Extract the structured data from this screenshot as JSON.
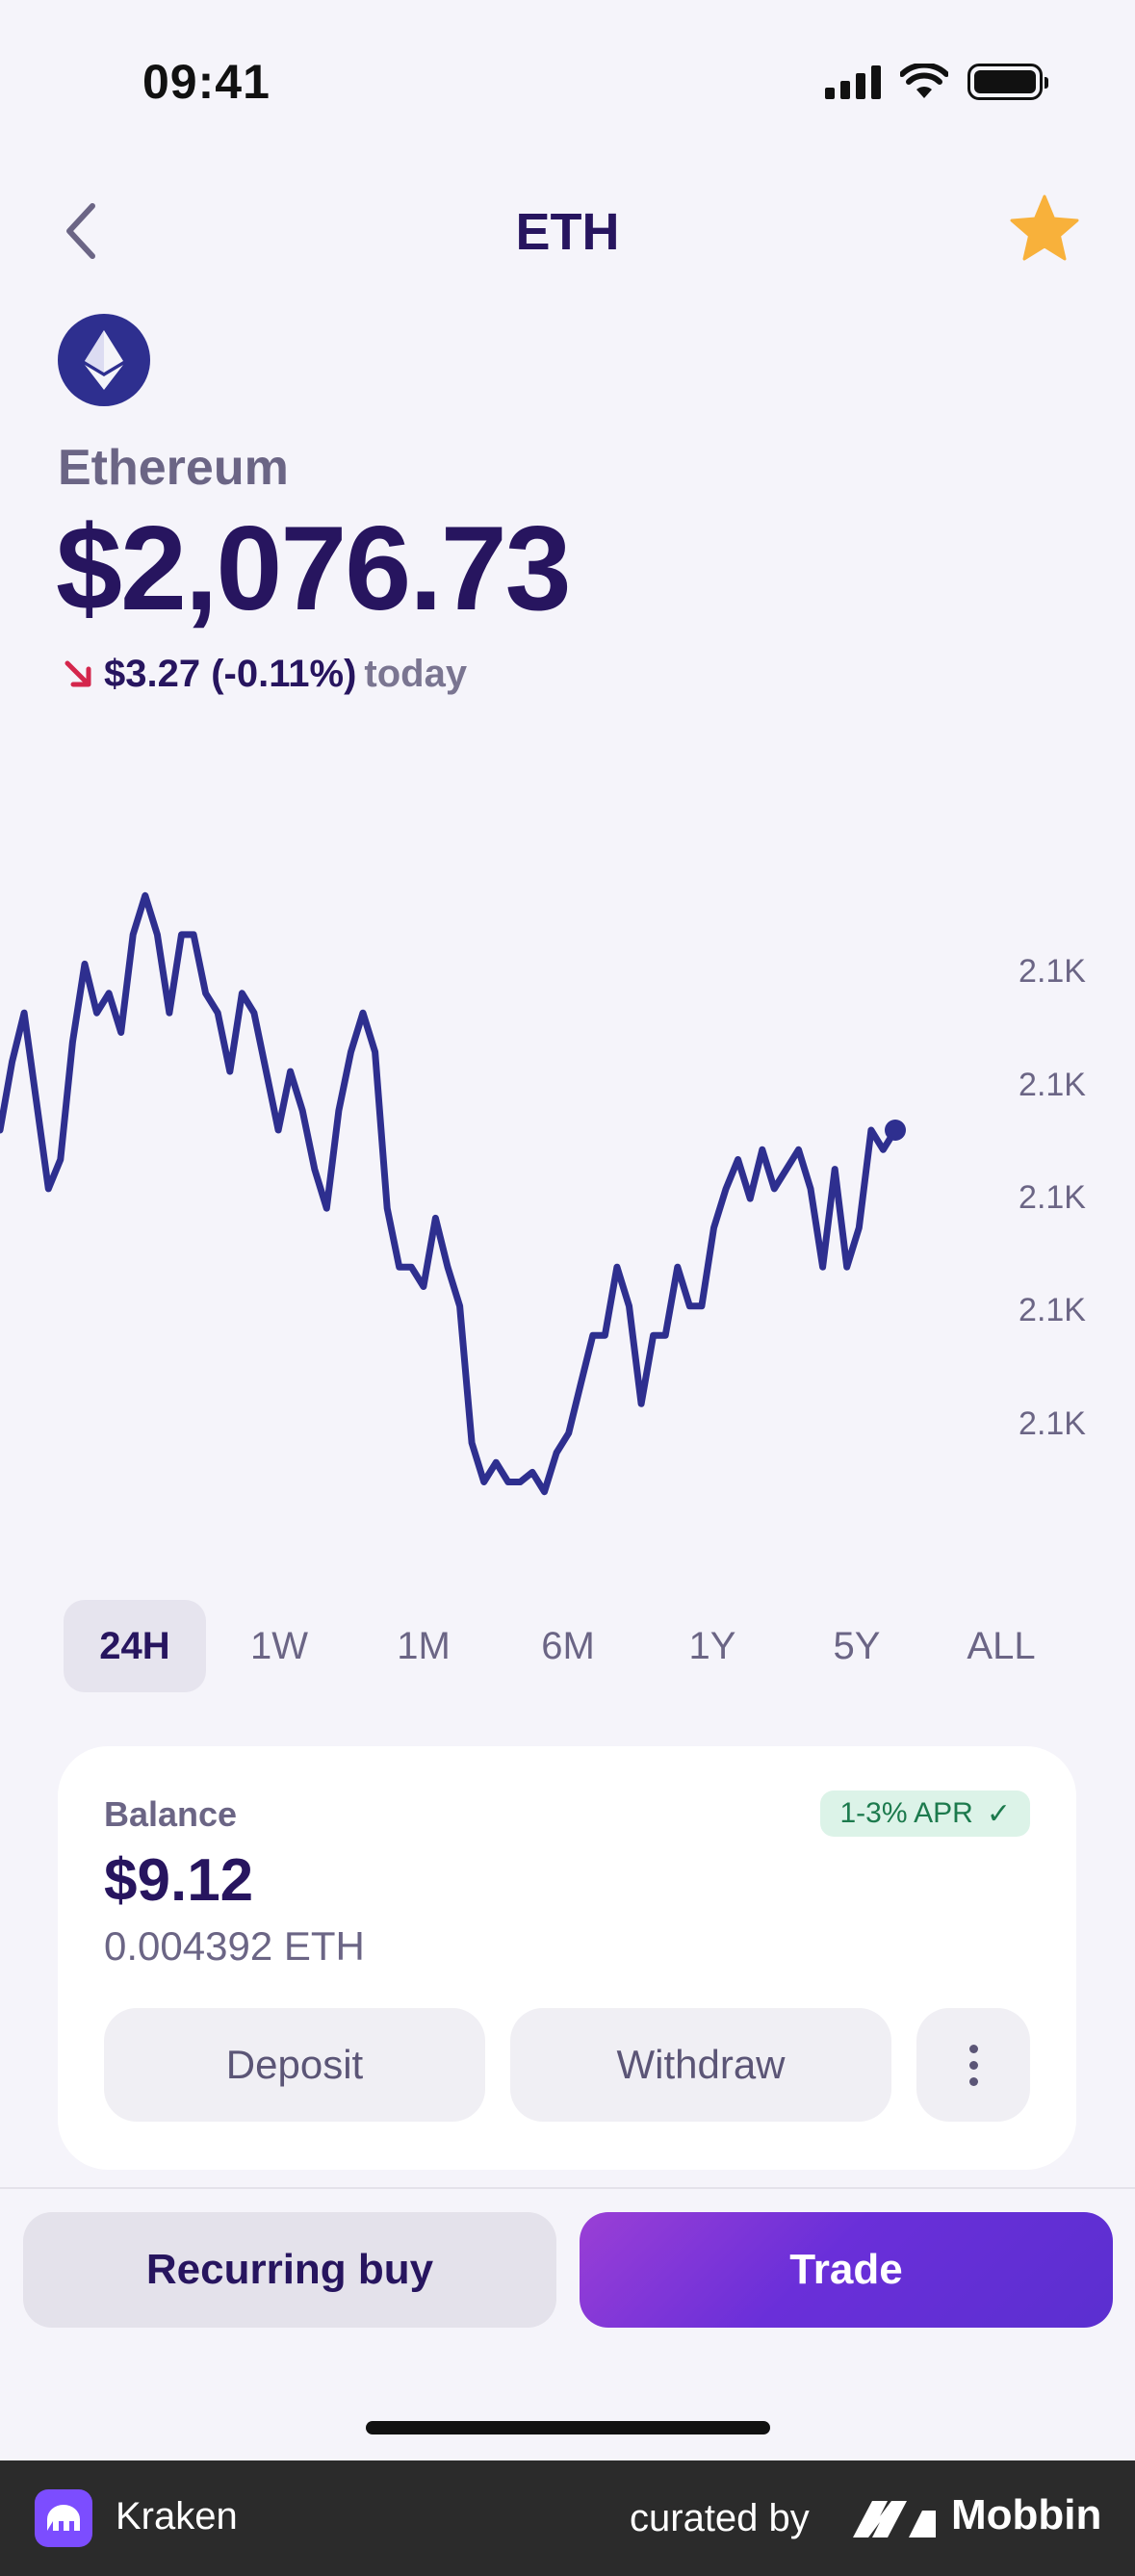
{
  "status_bar": {
    "time": "09:41"
  },
  "nav": {
    "title": "ETH"
  },
  "coin": {
    "name": "Ethereum",
    "price": "$2,076.73",
    "change_value": "$3.27 (-0.11%)",
    "change_suffix": "today"
  },
  "chart_data": {
    "type": "line",
    "y_tick_labels": [
      "2.1K",
      "2.1K",
      "2.1K",
      "2.1K",
      "2.1K"
    ],
    "series": [
      {
        "color": "#2e2f8f",
        "values": [
          2076.2,
          2076.9,
          2077.4,
          2076.5,
          2075.6,
          2075.9,
          2077.1,
          2077.9,
          2077.4,
          2077.6,
          2077.2,
          2078.2,
          2078.6,
          2078.2,
          2077.4,
          2078.2,
          2078.2,
          2077.6,
          2077.4,
          2076.8,
          2077.6,
          2077.4,
          2076.8,
          2076.2,
          2076.8,
          2076.4,
          2075.8,
          2075.4,
          2076.4,
          2077.0,
          2077.4,
          2077.0,
          2075.4,
          2074.8,
          2074.8,
          2074.6,
          2075.3,
          2074.8,
          2074.4,
          2073.0,
          2072.6,
          2072.8,
          2072.6,
          2072.6,
          2072.7,
          2072.5,
          2072.9,
          2073.1,
          2073.6,
          2074.1,
          2074.1,
          2074.8,
          2074.4,
          2073.4,
          2074.1,
          2074.1,
          2074.8,
          2074.4,
          2074.4,
          2075.2,
          2075.6,
          2075.9,
          2075.5,
          2076.0,
          2075.6,
          2075.8,
          2076.0,
          2075.6,
          2074.8,
          2075.8,
          2074.8,
          2075.2,
          2076.2,
          2076.0,
          2076.2
        ]
      }
    ]
  },
  "range_tabs": [
    "24H",
    "1W",
    "1M",
    "6M",
    "1Y",
    "5Y",
    "ALL"
  ],
  "balance_card": {
    "label": "Balance",
    "apr": "1-3% APR",
    "apr_check": "✓",
    "usd": "$9.12",
    "eth": "0.004392 ETH",
    "deposit_label": "Deposit",
    "withdraw_label": "Withdraw"
  },
  "actions": {
    "recurring_label": "Recurring buy",
    "trade_label": "Trade"
  },
  "footer": {
    "app_name": "Kraken",
    "curated_by": "curated by",
    "brand": "Mobbin"
  }
}
